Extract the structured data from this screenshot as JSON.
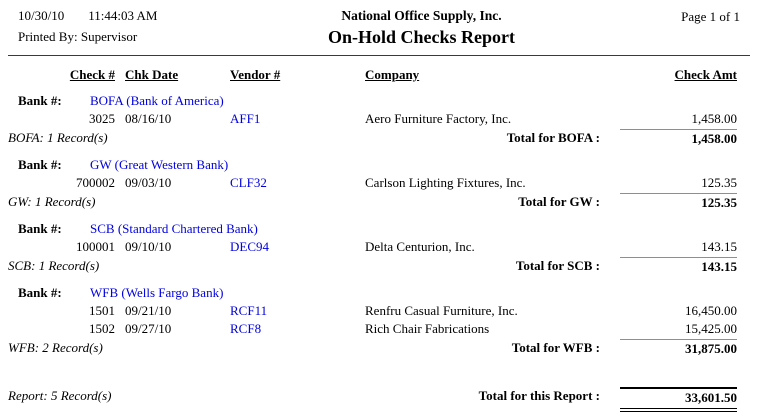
{
  "header": {
    "date": "10/30/10",
    "time": "11:44:03 AM",
    "printed_by": "Printed By: Supervisor",
    "company_name": "National Office Supply, Inc.",
    "report_title": "On-Hold Checks Report",
    "page_info": "Page 1 of 1"
  },
  "columns": {
    "check_num": "Check #",
    "chk_date": "Chk Date",
    "vendor": "Vendor #",
    "company": "Company",
    "check_amt": "Check Amt"
  },
  "sections": [
    {
      "bank_label": "Bank #:",
      "bank_name": "BOFA (Bank of America)",
      "rows": [
        {
          "check_num": "3025",
          "chk_date": "08/16/10",
          "vendor": "AFF1",
          "company": "Aero Furniture Factory, Inc.",
          "amount": "1,458.00"
        }
      ],
      "records": "BOFA: 1 Record(s)",
      "total_label": "Total for BOFA :",
      "total_amount": "1,458.00"
    },
    {
      "bank_label": "Bank #:",
      "bank_name": "GW (Great Western Bank)",
      "rows": [
        {
          "check_num": "700002",
          "chk_date": "09/03/10",
          "vendor": "CLF32",
          "company": "Carlson Lighting Fixtures, Inc.",
          "amount": "125.35"
        }
      ],
      "records": "GW: 1 Record(s)",
      "total_label": "Total for GW :",
      "total_amount": "125.35"
    },
    {
      "bank_label": "Bank #:",
      "bank_name": "SCB (Standard Chartered Bank)",
      "rows": [
        {
          "check_num": "100001",
          "chk_date": "09/10/10",
          "vendor": "DEC94",
          "company": "Delta Centurion, Inc.",
          "amount": "143.15"
        }
      ],
      "records": "SCB: 1 Record(s)",
      "total_label": "Total for SCB :",
      "total_amount": "143.15"
    },
    {
      "bank_label": "Bank #:",
      "bank_name": "WFB (Wells Fargo Bank)",
      "rows": [
        {
          "check_num": "1501",
          "chk_date": "09/21/10",
          "vendor": "RCF11",
          "company": "Renfru Casual Furniture, Inc.",
          "amount": "16,450.00"
        },
        {
          "check_num": "1502",
          "chk_date": "09/27/10",
          "vendor": "RCF8",
          "company": "Rich Chair Fabrications",
          "amount": "15,425.00"
        }
      ],
      "records": "WFB: 2 Record(s)",
      "total_label": "Total for WFB :",
      "total_amount": "31,875.00"
    }
  ],
  "footer": {
    "records": "Report: 5 Record(s)",
    "total_label": "Total for this Report :",
    "total_amount": "33,601.50"
  },
  "colors": {
    "link_blue": "#0000E0",
    "rule_gray": "#8f8f8f"
  }
}
